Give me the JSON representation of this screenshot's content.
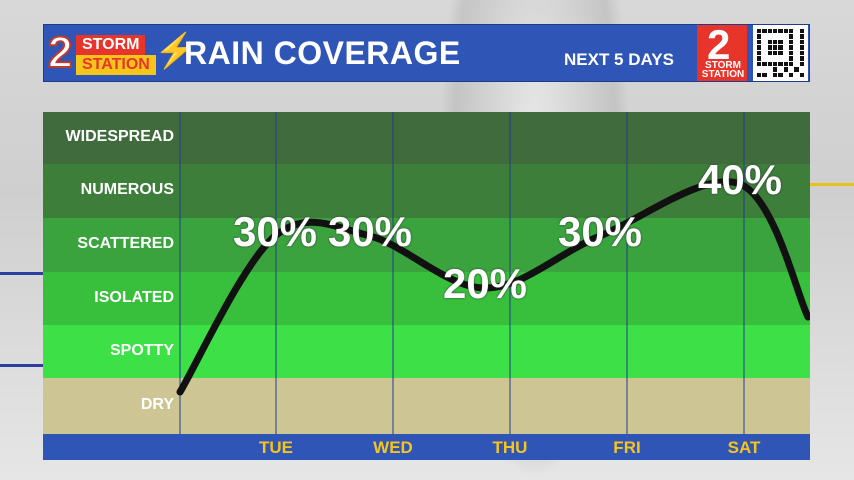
{
  "header": {
    "logo_storm": "STORM",
    "logo_station": "STATION",
    "logo_number": "2",
    "title": "RAIN COVERAGE",
    "subtitle": "NEXT 5 DAYS",
    "small_logo_number": "2",
    "small_logo_text": "STORM STATION"
  },
  "colors": {
    "header_blue": "#2f55b6",
    "storm_red": "#e8352b",
    "station_yellow": "#f6c51b",
    "axis_label_yellow": "#f6c51b",
    "band_widespread": "#3f6b3d",
    "band_numerous": "#3c7e3a",
    "band_scattered": "#3aa33e",
    "band_isolated": "#38bf3c",
    "band_spotty": "#3ee048",
    "band_dry": "#cdc594"
  },
  "chart_data": {
    "type": "line",
    "title": "RAIN COVERAGE",
    "subtitle": "NEXT 5 DAYS",
    "categories": [
      "TUE",
      "WED",
      "THU",
      "FRI",
      "SAT"
    ],
    "values": [
      30,
      30,
      20,
      30,
      40
    ],
    "value_labels": [
      "30%",
      "30%",
      "20%",
      "30%",
      "40%"
    ],
    "bands": [
      "WIDESPREAD",
      "NUMEROUS",
      "SCATTERED",
      "ISOLATED",
      "SPOTTY",
      "DRY"
    ],
    "grid": true,
    "legend": "none"
  }
}
